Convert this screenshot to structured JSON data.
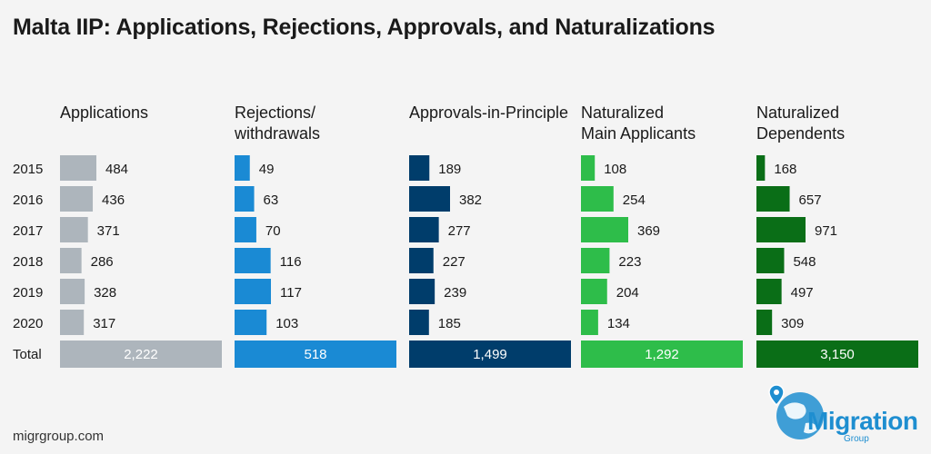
{
  "title": "Malta IIP: Applications, Rejections, Approvals, and Naturalizations",
  "footer": "migrgroup.com",
  "logo": {
    "name": "Migration",
    "sub": "Group"
  },
  "chart_data": {
    "type": "bar",
    "categories": [
      "2015",
      "2016",
      "2017",
      "2018",
      "2019",
      "2020"
    ],
    "total_label": "Total",
    "series": [
      {
        "name": "Applications",
        "label_lines": [
          "Applications"
        ],
        "color": "#adb5bc",
        "values": [
          484,
          436,
          371,
          286,
          328,
          317
        ],
        "total": 2222,
        "total_text": "2,222"
      },
      {
        "name": "Rejections/ withdrawals",
        "label_lines": [
          "Rejections/",
          "withdrawals"
        ],
        "color": "#1a8ad4",
        "values": [
          49,
          63,
          70,
          116,
          117,
          103
        ],
        "total": 518,
        "total_text": "518"
      },
      {
        "name": "Approvals-in-Principle",
        "label_lines": [
          "Approvals-in-Principle"
        ],
        "color": "#003d6b",
        "values": [
          189,
          382,
          277,
          227,
          239,
          185
        ],
        "total": 1499,
        "total_text": "1,499"
      },
      {
        "name": "Naturalized Main Applicants",
        "label_lines": [
          "Naturalized",
          "Main Applicants"
        ],
        "color": "#2ebd4a",
        "values": [
          108,
          254,
          369,
          223,
          204,
          134
        ],
        "total": 1292,
        "total_text": "1,292"
      },
      {
        "name": "Naturalized Dependents",
        "label_lines": [
          "Naturalized",
          "Dependents"
        ],
        "color": "#0a6e17",
        "values": [
          168,
          657,
          971,
          548,
          497,
          309
        ],
        "total": 3150,
        "total_text": "3,150"
      }
    ]
  }
}
